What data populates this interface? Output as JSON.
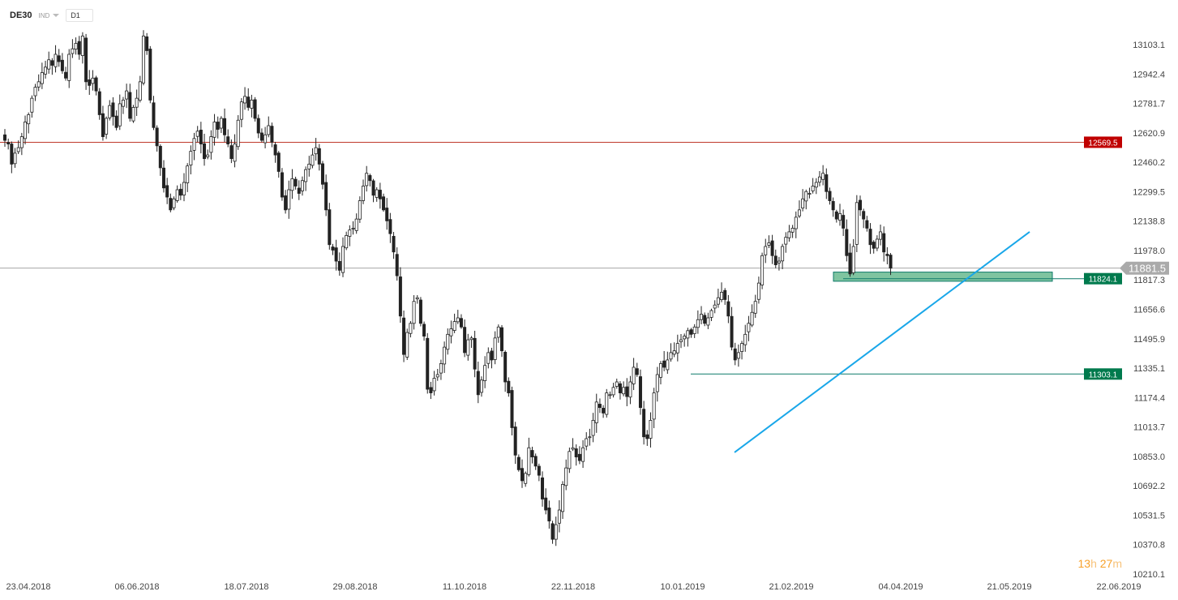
{
  "toolbar": {
    "symbol": "DE30",
    "instrument_type": "IND",
    "timeframe": "D1"
  },
  "countdown": {
    "hours": "13",
    "hours_unit": "h",
    "minutes": "27",
    "minutes_unit": "m"
  },
  "colors": {
    "candle_up": "#ffffff",
    "candle_down": "#222222",
    "resistance": "#c0392b",
    "support": "#0f7a6a",
    "trendline": "#19a7e9",
    "zone_fill": "#7fc4a0",
    "last_price_badge": "#aaaaaa"
  },
  "chart_data": {
    "type": "candlestick",
    "symbol": "DE30",
    "timeframe": "D1",
    "ylim": [
      10210.1,
      13200
    ],
    "y_ticks": [
      "13103.1",
      "12942.4",
      "12781.7",
      "12620.9",
      "12460.2",
      "12299.5",
      "12138.8",
      "11978.0",
      "11817.3",
      "11656.6",
      "11495.9",
      "11335.1",
      "11174.4",
      "11013.7",
      "10853.0",
      "10692.2",
      "10531.5",
      "10370.8",
      "10210.1"
    ],
    "x_ticks": [
      "23.04.2018",
      "06.06.2018",
      "18.07.2018",
      "29.08.2018",
      "11.10.2018",
      "22.11.2018",
      "10.01.2019",
      "21.02.2019",
      "04.04.2019",
      "21.05.2019",
      "22.06.2019"
    ],
    "closes": [
      12580,
      12560,
      12450,
      12510,
      12540,
      12600,
      12680,
      12720,
      12810,
      12870,
      12900,
      12950,
      12980,
      13020,
      12990,
      13050,
      13010,
      12960,
      12920,
      13050,
      13080,
      13110,
      13050,
      13150,
      12900,
      12880,
      12920,
      12850,
      12720,
      12600,
      12700,
      12770,
      12710,
      12650,
      12780,
      12800,
      12850,
      12700,
      12760,
      12810,
      12900,
      13150,
      13070,
      12800,
      12650,
      12550,
      12430,
      12320,
      12270,
      12200,
      12260,
      12310,
      12280,
      12350,
      12440,
      12520,
      12590,
      12630,
      12560,
      12480,
      12500,
      12600,
      12680,
      12640,
      12700,
      12610,
      12560,
      12480,
      12560,
      12690,
      12790,
      12820,
      12760,
      12800,
      12700,
      12620,
      12580,
      12610,
      12660,
      12570,
      12500,
      12410,
      12270,
      12200,
      12310,
      12370,
      12330,
      12290,
      12360,
      12420,
      12450,
      12500,
      12540,
      12450,
      12340,
      12200,
      12010,
      11980,
      11920,
      11870,
      12000,
      12060,
      12090,
      12100,
      12150,
      12250,
      12330,
      12400,
      12360,
      12280,
      12310,
      12260,
      12200,
      12140,
      12070,
      11970,
      11840,
      11620,
      11410,
      11530,
      11580,
      11700,
      11720,
      11580,
      11510,
      11220,
      11200,
      11280,
      11300,
      11360,
      11450,
      11520,
      11550,
      11590,
      11610,
      11560,
      11420,
      11490,
      11500,
      11330,
      11190,
      11270,
      11350,
      11420,
      11380,
      11500,
      11560,
      11430,
      11260,
      11200,
      11010,
      10860,
      10780,
      10720,
      10760,
      10900,
      10850,
      10800,
      10750,
      10620,
      10560,
      10500,
      10400,
      10480,
      10560,
      10700,
      10790,
      10880,
      10900,
      10850,
      10830,
      10900,
      10950,
      10960,
      11050,
      11150,
      11120,
      11090,
      11200,
      11190,
      11230,
      11260,
      11200,
      11230,
      11180,
      11260,
      11340,
      11300,
      11120,
      10960,
      10950,
      11050,
      11200,
      11300,
      11360,
      11340,
      11380,
      11420,
      11430,
      11470,
      11490,
      11510,
      11540,
      11520,
      11560,
      11600,
      11630,
      11580,
      11610,
      11650,
      11680,
      11720,
      11750,
      11710,
      11620,
      11450,
      11380,
      11420,
      11470,
      11520,
      11580,
      11640,
      11700,
      11800,
      11950,
      12000,
      12020,
      11950,
      11900,
      11920,
      12000,
      12050,
      12080,
      12100,
      12160,
      12200,
      12260,
      12300,
      12290,
      12330,
      12350,
      12380,
      12400,
      12300,
      12250,
      12200,
      12150,
      12180,
      12100,
      11950,
      11850,
      12000,
      12240,
      12200,
      12150,
      12100,
      12010,
      11990,
      12040,
      12080,
      11970,
      11950,
      11881.5
    ],
    "last_price": 11881.5,
    "horizontal_levels": [
      {
        "value": 12569.5,
        "label": "12569.5",
        "kind": "resistance"
      },
      {
        "value": 11824.1,
        "label": "11824.1",
        "kind": "support"
      },
      {
        "value": 11303.1,
        "label": "11303.1",
        "kind": "support"
      }
    ],
    "zone": {
      "from": 11810,
      "to": 11860
    },
    "trendline": {
      "from_price": 10875,
      "to_price": 12080
    }
  }
}
